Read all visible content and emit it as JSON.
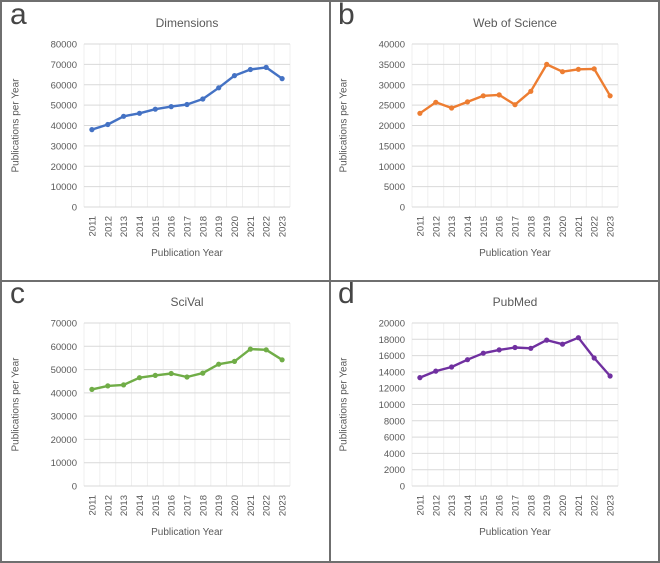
{
  "figure": {
    "shared_xlabel": "Publication Year",
    "shared_ylabel": "Publications per Year",
    "grid_color": "#d9d9d9",
    "divider_color": "#6f6f6f",
    "text_color": "#595959"
  },
  "chart_data": [
    {
      "type": "line",
      "panel_label": "a",
      "title": "Dimensions",
      "color": "#4472C4",
      "xlabel": "Publication Year",
      "ylabel": "Publications per Year",
      "categories": [
        "2011",
        "2012",
        "2013",
        "2014",
        "2015",
        "2016",
        "2017",
        "2018",
        "2019",
        "2020",
        "2021",
        "2022",
        "2023"
      ],
      "values": [
        38000,
        40500,
        44500,
        46000,
        48000,
        49300,
        50300,
        53000,
        58500,
        64500,
        67500,
        68500,
        63000
      ],
      "ylim": [
        0,
        80000
      ],
      "ytick_step": 10000,
      "grid": true,
      "legend": "none"
    },
    {
      "type": "line",
      "panel_label": "b",
      "title": "Web of Science",
      "color": "#ED7D31",
      "xlabel": "Publication Year",
      "ylabel": "Publications per Year",
      "categories": [
        "2011",
        "2012",
        "2013",
        "2014",
        "2015",
        "2016",
        "2017",
        "2018",
        "2019",
        "2020",
        "2021",
        "2022",
        "2023"
      ],
      "values": [
        23000,
        25700,
        24300,
        25800,
        27300,
        27500,
        25100,
        28400,
        35000,
        33200,
        33800,
        33900,
        27300
      ],
      "ylim": [
        0,
        40000
      ],
      "ytick_step": 5000,
      "grid": true,
      "legend": "none"
    },
    {
      "type": "line",
      "panel_label": "c",
      "title": "SciVal",
      "color": "#70AD47",
      "xlabel": "Publication Year",
      "ylabel": "Publications per Year",
      "categories": [
        "2011",
        "2012",
        "2013",
        "2014",
        "2015",
        "2016",
        "2017",
        "2018",
        "2019",
        "2020",
        "2021",
        "2022",
        "2023"
      ],
      "values": [
        41500,
        43000,
        43400,
        46500,
        47500,
        48300,
        46800,
        48500,
        52300,
        53500,
        58800,
        58500,
        54200
      ],
      "ylim": [
        0,
        70000
      ],
      "ytick_step": 10000,
      "grid": true,
      "legend": "none"
    },
    {
      "type": "line",
      "panel_label": "d",
      "title": "PubMed",
      "color": "#7030A0",
      "xlabel": "Publication Year",
      "ylabel": "Publications per Year",
      "categories": [
        "2011",
        "2012",
        "2013",
        "2014",
        "2015",
        "2016",
        "2017",
        "2018",
        "2019",
        "2020",
        "2021",
        "2022",
        "2023"
      ],
      "values": [
        13300,
        14100,
        14600,
        15500,
        16300,
        16700,
        17000,
        16900,
        17900,
        17400,
        18200,
        15700,
        13500
      ],
      "ylim": [
        0,
        20000
      ],
      "ytick_step": 2000,
      "grid": true,
      "legend": "none"
    }
  ]
}
